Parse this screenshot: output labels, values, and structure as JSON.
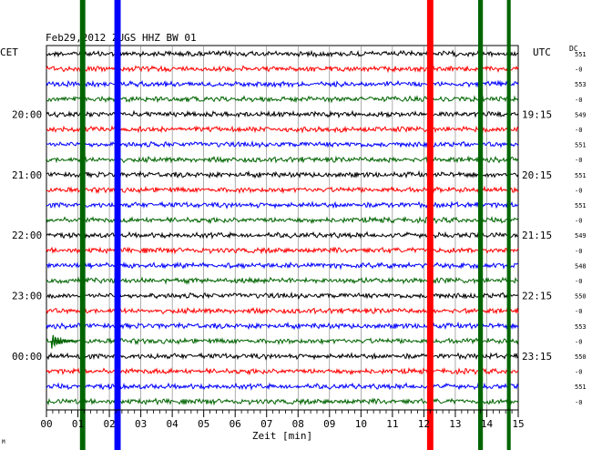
{
  "header": {
    "title": "Feb29,2012   ZUGS HHZ BW 01",
    "left_timezone": "CET",
    "right_timezone": "UTC",
    "dc_label": "DC"
  },
  "chart_data": {
    "type": "line",
    "xlabel": "Zeit [min]",
    "xlim": [
      0,
      15
    ],
    "x_ticks": [
      "00",
      "01",
      "02",
      "03",
      "04",
      "05",
      "06",
      "07",
      "08",
      "09",
      "10",
      "11",
      "12",
      "13",
      "14",
      "15"
    ],
    "grid": true,
    "trace_count": 24,
    "trace_color_cycle": [
      "#000000",
      "#ff0000",
      "#0000ff",
      "#006400"
    ],
    "left_hour_labels": [
      {
        "label": "20:00",
        "trace_index": 4
      },
      {
        "label": "21:00",
        "trace_index": 8
      },
      {
        "label": "22:00",
        "trace_index": 12
      },
      {
        "label": "23:00",
        "trace_index": 16
      },
      {
        "label": "00:00",
        "trace_index": 20
      }
    ],
    "right_hour_labels": [
      {
        "label": "19:15",
        "trace_index": 4
      },
      {
        "label": "20:15",
        "trace_index": 8
      },
      {
        "label": "21:15",
        "trace_index": 12
      },
      {
        "label": "22:15",
        "trace_index": 16
      },
      {
        "label": "23:15",
        "trace_index": 20
      }
    ],
    "dc_offsets": [
      "551",
      "-0",
      "553",
      "-0",
      "549",
      "-0",
      "551",
      "-0",
      "551",
      "-0",
      "551",
      "-0",
      "549",
      "-0",
      "548",
      "-0",
      "550",
      "-0",
      "553",
      "-0",
      "550",
      "-0",
      "551",
      "-0"
    ],
    "events": [
      {
        "x": 1.15,
        "color": "#006400",
        "width": 0.17
      },
      {
        "x": 2.26,
        "color": "#0000ff",
        "width": 0.2
      },
      {
        "x": 12.2,
        "color": "#ff0000",
        "width": 0.2
      },
      {
        "x": 13.8,
        "color": "#006400",
        "width": 0.15
      },
      {
        "x": 14.7,
        "color": "#006400",
        "width": 0.12
      }
    ],
    "local_events": [
      {
        "x": 0.15,
        "trace_index": 19,
        "color": "#006400"
      }
    ]
  },
  "footer_mark": "M"
}
